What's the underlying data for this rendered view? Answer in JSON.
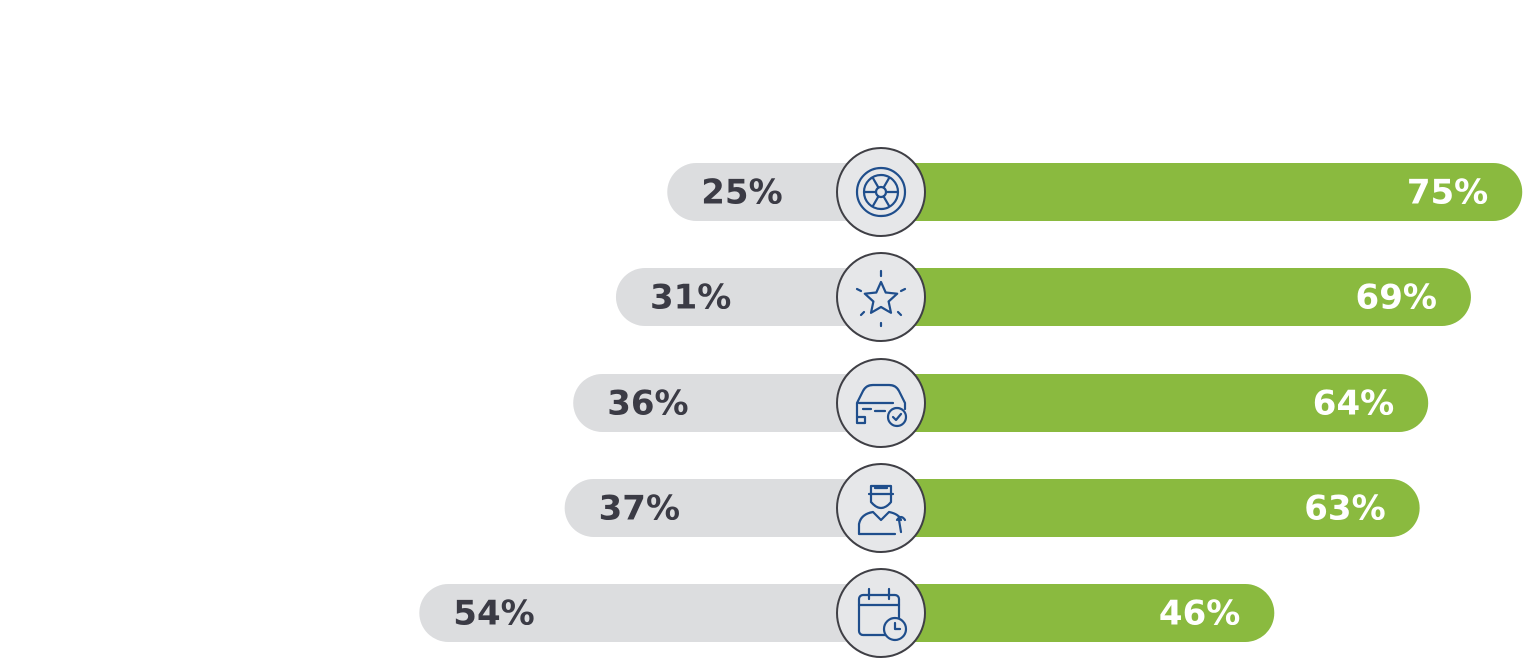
{
  "chart_data": {
    "type": "diverging-bar",
    "series": [
      {
        "color": "#dcdddf",
        "values": [
          25,
          31,
          36,
          37,
          54
        ],
        "value_labels": [
          "25%",
          "31%",
          "36%",
          "37%",
          "54%"
        ]
      },
      {
        "color": "#8aba3f",
        "values": [
          75,
          69,
          64,
          63,
          46
        ],
        "value_labels": [
          "75%",
          "69%",
          "64%",
          "63%",
          "46%"
        ]
      }
    ]
  }
}
